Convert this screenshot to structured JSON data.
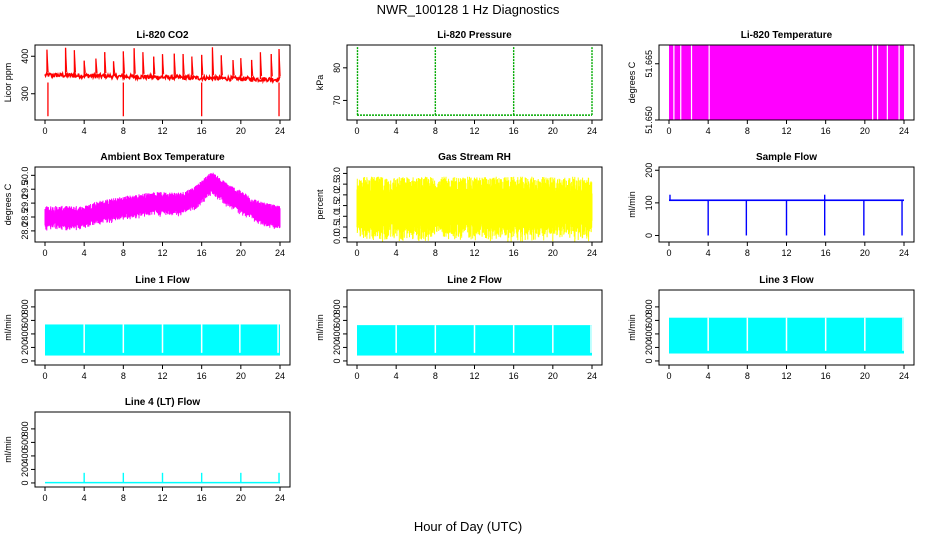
{
  "figure": {
    "title": "NWR_100128  1 Hz Diagnostics",
    "xlabel": "Hour of Day (UTC)"
  },
  "chart_data": [
    {
      "type": "line",
      "title": "Li-820 CO2",
      "ylabel": "Licor ppm",
      "xlim": [
        0,
        24
      ],
      "xticks": [
        0,
        4,
        8,
        12,
        16,
        20,
        24
      ],
      "ylim": [
        230,
        430
      ],
      "yticks": [
        300,
        400
      ],
      "color": "#ff0000",
      "series": [
        {
          "kind": "spiky",
          "base_start": 350,
          "base_end": 338,
          "noise": 6,
          "spike_times": [
            0.2,
            2.1,
            3.0,
            4.0,
            5.2,
            6.1,
            7.0,
            8.0,
            9.1,
            10.0,
            11.1,
            12.0,
            13.2,
            14.1,
            15.0,
            16.0,
            17.1,
            18.0,
            19.2,
            20.0,
            21.1,
            22.0,
            23.1,
            23.9
          ],
          "spike_high": 425,
          "dip_times": [
            0.3,
            8.0,
            16.0,
            23.9
          ],
          "dip_low": 240
        }
      ]
    },
    {
      "type": "line",
      "title": "Li-820 Pressure",
      "ylabel": "kPa",
      "xlim": [
        0,
        24
      ],
      "xticks": [
        0,
        4,
        8,
        12,
        16,
        20,
        24
      ],
      "ylim": [
        64,
        87
      ],
      "yticks": [
        70,
        80
      ],
      "color": "#00aa00",
      "series": [
        {
          "kind": "flat_spikes",
          "base": 65.5,
          "spike_times": [
            0.05,
            8.0,
            16.0,
            24.0
          ],
          "spike_high": 86.5
        }
      ]
    },
    {
      "type": "line",
      "title": "Li-820 Temperature",
      "ylabel": "degrees C",
      "xlim": [
        0,
        24
      ],
      "xticks": [
        0,
        4,
        8,
        12,
        16,
        20,
        24
      ],
      "ylim": [
        51.65,
        51.67
      ],
      "yticks": [
        51.65,
        51.665
      ],
      "color": "#ff00ff",
      "series": [
        {
          "kind": "fill_band",
          "low": 51.65,
          "high": 51.67,
          "gaps": [
            0.5,
            1.2,
            2.3,
            4.1,
            20.8,
            21.3,
            22.3,
            23.5
          ]
        }
      ]
    },
    {
      "type": "line",
      "title": "Ambient Box Temperature",
      "ylabel": "degrees C",
      "xlim": [
        0,
        24
      ],
      "xticks": [
        0,
        4,
        8,
        12,
        16,
        20,
        24
      ],
      "ylim": [
        27.6,
        30.3
      ],
      "yticks": [
        28.0,
        28.5,
        29.0,
        29.5,
        30.0
      ],
      "color": "#ff00ff",
      "series": [
        {
          "kind": "noisy_band",
          "profile": [
            [
              0,
              28.45
            ],
            [
              4,
              28.45
            ],
            [
              5,
              28.6
            ],
            [
              8,
              28.8
            ],
            [
              11,
              28.95
            ],
            [
              14,
              28.95
            ],
            [
              15.5,
              29.2
            ],
            [
              17,
              29.7
            ],
            [
              18.5,
              29.3
            ],
            [
              20,
              29.0
            ],
            [
              22,
              28.6
            ],
            [
              24,
              28.45
            ]
          ],
          "amp": 0.45
        }
      ]
    },
    {
      "type": "line",
      "title": "Gas Stream RH",
      "ylabel": "percent",
      "xlim": [
        0,
        24
      ],
      "xticks": [
        0,
        4,
        8,
        12,
        16,
        20,
        24
      ],
      "ylim": [
        -0.2,
        3.3
      ],
      "yticks": [
        0.0,
        0.5,
        1.0,
        1.5,
        2.0,
        2.5,
        3.0
      ],
      "color": "#ffff00",
      "series": [
        {
          "kind": "noisy_band",
          "profile": [
            [
              0,
              1.3
            ],
            [
              24,
              1.3
            ]
          ],
          "amp": 1.55
        }
      ]
    },
    {
      "type": "line",
      "title": "Sample Flow",
      "ylabel": "ml/min",
      "xlim": [
        0,
        24
      ],
      "xticks": [
        0,
        4,
        8,
        12,
        16,
        20,
        24
      ],
      "ylim": [
        -20,
        210
      ],
      "yticks": [
        0,
        100,
        200
      ],
      "color": "#0000ff",
      "series": [
        {
          "kind": "flat_dips",
          "base": 108,
          "band": 5,
          "dip_times": [
            4.0,
            7.9,
            12.0,
            15.9,
            19.9,
            23.8
          ],
          "dip_low": 0,
          "spike_times": [
            0.1,
            15.9
          ],
          "spike_high": 125
        }
      ]
    },
    {
      "type": "line",
      "title": "Line 1 Flow",
      "ylabel": "ml/min",
      "xlim": [
        0,
        24
      ],
      "xticks": [
        0,
        4,
        8,
        12,
        16,
        20,
        24
      ],
      "ylim": [
        -60,
        1050
      ],
      "yticks": [
        0,
        200,
        400,
        600,
        800
      ],
      "color": "#00ffff",
      "series": [
        {
          "kind": "block",
          "low": 80,
          "high": 540,
          "gaps": [
            4.0,
            8.0,
            12.0,
            16.0,
            19.9,
            23.8
          ]
        }
      ]
    },
    {
      "type": "line",
      "title": "Line 2 Flow",
      "ylabel": "ml/min",
      "xlim": [
        0,
        24
      ],
      "xticks": [
        0,
        4,
        8,
        12,
        16,
        20,
        24
      ],
      "ylim": [
        -60,
        1050
      ],
      "yticks": [
        0,
        200,
        400,
        600,
        800
      ],
      "color": "#00ffff",
      "series": [
        {
          "kind": "block",
          "low": 80,
          "high": 530,
          "gaps": [
            4.0,
            8.0,
            12.0,
            16.0,
            20.0,
            23.9
          ]
        }
      ]
    },
    {
      "type": "line",
      "title": "Line 3 Flow",
      "ylabel": "ml/min",
      "xlim": [
        0,
        24
      ],
      "xticks": [
        0,
        4,
        8,
        12,
        16,
        20,
        24
      ],
      "ylim": [
        -60,
        1050
      ],
      "yticks": [
        0,
        200,
        400,
        600,
        800
      ],
      "color": "#00ffff",
      "series": [
        {
          "kind": "block",
          "low": 110,
          "high": 640,
          "gaps": [
            4.0,
            8.0,
            12.0,
            16.0,
            20.0,
            23.9
          ]
        }
      ]
    },
    {
      "type": "line",
      "title": "Line 4 (LT) Flow",
      "ylabel": "ml/min",
      "xlim": [
        0,
        24
      ],
      "xticks": [
        0,
        4,
        8,
        12,
        16,
        20,
        24
      ],
      "ylim": [
        -60,
        1050
      ],
      "yticks": [
        0,
        200,
        400,
        600,
        800
      ],
      "color": "#00ffff",
      "series": [
        {
          "kind": "flat_spikes",
          "base": 5,
          "spike_times": [
            4.0,
            8.0,
            12.0,
            16.0,
            20.0,
            23.9
          ],
          "spike_high": 150
        }
      ]
    }
  ]
}
